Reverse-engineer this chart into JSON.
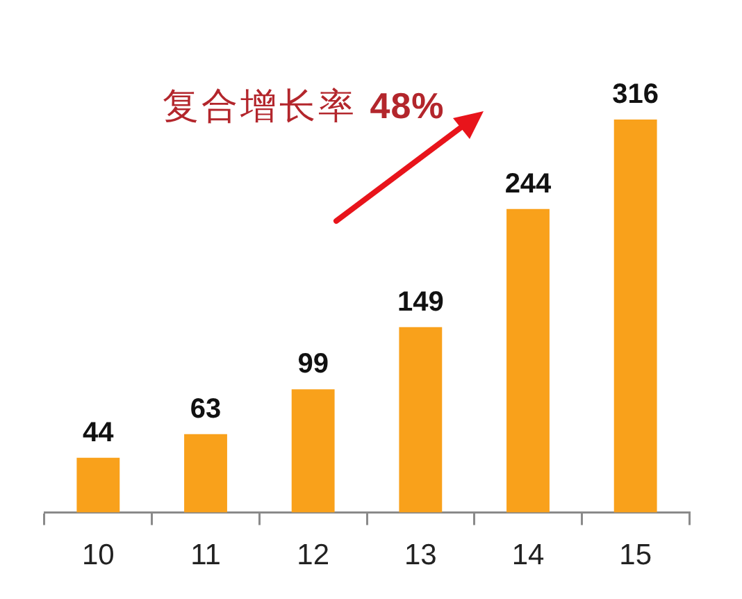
{
  "chart_data": {
    "type": "bar",
    "categories": [
      "10",
      "11",
      "12",
      "13",
      "14",
      "15"
    ],
    "values": [
      44,
      63,
      99,
      149,
      244,
      316
    ],
    "color": "#f9a11b",
    "data_labels": true,
    "annotations": [
      "复合增长率 48%"
    ]
  }
}
